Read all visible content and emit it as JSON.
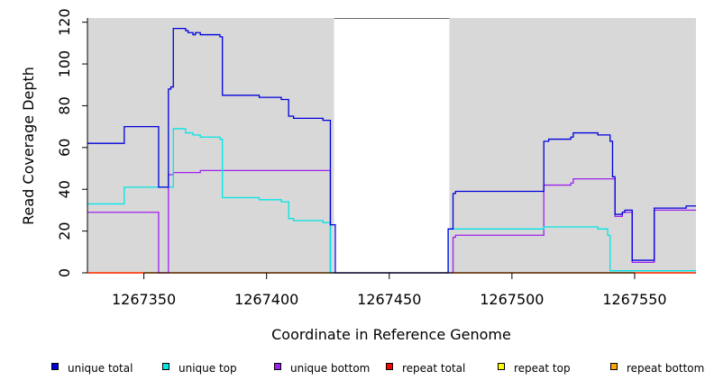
{
  "chart_data": {
    "type": "line",
    "xlabel": "Coordinate in Reference Genome",
    "ylabel": "Read Coverage Depth",
    "xlim": [
      1267327,
      1267575
    ],
    "ylim": [
      0,
      122
    ],
    "x_ticks": [
      1267350,
      1267400,
      1267450,
      1267500,
      1267550
    ],
    "x_tick_labels": [
      "1267350",
      "1267400",
      "1267450",
      "1267500",
      "1267550"
    ],
    "y_ticks": [
      0,
      20,
      40,
      60,
      80,
      100,
      120
    ],
    "y_tick_labels": [
      "0",
      "20",
      "40",
      "60",
      "80",
      "100",
      "120"
    ],
    "grid": false,
    "plot_background": "#d8d8d8",
    "uncovered_regions": [
      [
        1267427.5,
        1267474.5
      ]
    ],
    "legend_position": "bottom",
    "series": [
      {
        "name": "unique total",
        "color": "#0000dd",
        "points": [
          [
            1267327,
            62
          ],
          [
            1267342,
            62
          ],
          [
            1267342,
            70
          ],
          [
            1267356,
            70
          ],
          [
            1267356,
            41
          ],
          [
            1267360,
            41
          ],
          [
            1267360,
            88
          ],
          [
            1267361,
            88
          ],
          [
            1267361,
            89
          ],
          [
            1267362,
            89
          ],
          [
            1267362,
            117
          ],
          [
            1267367,
            117
          ],
          [
            1267367,
            116
          ],
          [
            1267368,
            116
          ],
          [
            1267368,
            115
          ],
          [
            1267370,
            115
          ],
          [
            1267370,
            114
          ],
          [
            1267371,
            114
          ],
          [
            1267371,
            115
          ],
          [
            1267373,
            115
          ],
          [
            1267373,
            114
          ],
          [
            1267381,
            114
          ],
          [
            1267381,
            113
          ],
          [
            1267382,
            113
          ],
          [
            1267382,
            85
          ],
          [
            1267397,
            85
          ],
          [
            1267397,
            84
          ],
          [
            1267406,
            84
          ],
          [
            1267406,
            83
          ],
          [
            1267409,
            83
          ],
          [
            1267409,
            75
          ],
          [
            1267411,
            75
          ],
          [
            1267411,
            74
          ],
          [
            1267423,
            74
          ],
          [
            1267423,
            73
          ],
          [
            1267426,
            73
          ],
          [
            1267426,
            23
          ],
          [
            1267428,
            23
          ],
          [
            1267428,
            0
          ],
          [
            1267474,
            0
          ],
          [
            1267474,
            21
          ],
          [
            1267476,
            21
          ],
          [
            1267476,
            38
          ],
          [
            1267477,
            38
          ],
          [
            1267477,
            39
          ],
          [
            1267513,
            39
          ],
          [
            1267513,
            63
          ],
          [
            1267515,
            63
          ],
          [
            1267515,
            64
          ],
          [
            1267524,
            64
          ],
          [
            1267524,
            65
          ],
          [
            1267525,
            65
          ],
          [
            1267525,
            67
          ],
          [
            1267535,
            67
          ],
          [
            1267535,
            66
          ],
          [
            1267540,
            66
          ],
          [
            1267540,
            63
          ],
          [
            1267541,
            63
          ],
          [
            1267541,
            46
          ],
          [
            1267542,
            46
          ],
          [
            1267542,
            28
          ],
          [
            1267545,
            28
          ],
          [
            1267545,
            29
          ],
          [
            1267546,
            29
          ],
          [
            1267546,
            30
          ],
          [
            1267549,
            30
          ],
          [
            1267549,
            6
          ],
          [
            1267558,
            6
          ],
          [
            1267558,
            31
          ],
          [
            1267571,
            31
          ],
          [
            1267571,
            32
          ],
          [
            1267575,
            32
          ]
        ]
      },
      {
        "name": "unique top",
        "color": "#00e5e5",
        "points": [
          [
            1267327,
            33
          ],
          [
            1267342,
            33
          ],
          [
            1267342,
            41
          ],
          [
            1267356,
            41
          ],
          [
            1267356,
            41
          ],
          [
            1267362,
            41
          ],
          [
            1267362,
            69
          ],
          [
            1267367,
            69
          ],
          [
            1267367,
            67
          ],
          [
            1267370,
            67
          ],
          [
            1267370,
            66
          ],
          [
            1267373,
            66
          ],
          [
            1267373,
            65
          ],
          [
            1267381,
            65
          ],
          [
            1267381,
            64
          ],
          [
            1267382,
            64
          ],
          [
            1267382,
            36
          ],
          [
            1267397,
            36
          ],
          [
            1267397,
            35
          ],
          [
            1267406,
            35
          ],
          [
            1267406,
            34
          ],
          [
            1267409,
            34
          ],
          [
            1267409,
            26
          ],
          [
            1267411,
            26
          ],
          [
            1267411,
            25
          ],
          [
            1267423,
            25
          ],
          [
            1267423,
            24
          ],
          [
            1267426,
            24
          ],
          [
            1267426,
            0
          ],
          [
            1267474,
            0
          ],
          [
            1267474,
            21
          ],
          [
            1267513,
            21
          ],
          [
            1267513,
            22
          ],
          [
            1267535,
            22
          ],
          [
            1267535,
            21
          ],
          [
            1267539,
            21
          ],
          [
            1267539,
            18
          ],
          [
            1267540,
            18
          ],
          [
            1267540,
            1
          ],
          [
            1267575,
            1
          ]
        ]
      },
      {
        "name": "unique bottom",
        "color": "#a020f0",
        "points": [
          [
            1267327,
            29
          ],
          [
            1267356,
            29
          ],
          [
            1267356,
            0
          ],
          [
            1267360,
            0
          ],
          [
            1267360,
            47
          ],
          [
            1267362,
            47
          ],
          [
            1267362,
            48
          ],
          [
            1267373,
            48
          ],
          [
            1267373,
            49
          ],
          [
            1267426,
            49
          ],
          [
            1267426,
            0
          ],
          [
            1267476,
            0
          ],
          [
            1267476,
            17
          ],
          [
            1267477,
            17
          ],
          [
            1267477,
            18
          ],
          [
            1267513,
            18
          ],
          [
            1267513,
            42
          ],
          [
            1267524,
            42
          ],
          [
            1267524,
            43
          ],
          [
            1267525,
            43
          ],
          [
            1267525,
            45
          ],
          [
            1267542,
            45
          ],
          [
            1267542,
            27
          ],
          [
            1267545,
            27
          ],
          [
            1267545,
            29
          ],
          [
            1267549,
            29
          ],
          [
            1267549,
            5
          ],
          [
            1267558,
            5
          ],
          [
            1267558,
            30
          ],
          [
            1267575,
            30
          ]
        ]
      },
      {
        "name": "repeat total",
        "color": "#ff0000",
        "points": [
          [
            1267327,
            0
          ],
          [
            1267575,
            0
          ]
        ]
      },
      {
        "name": "repeat top",
        "color": "#ffff00",
        "points": [
          [
            1267327,
            0
          ],
          [
            1267575,
            0
          ]
        ]
      },
      {
        "name": "repeat bottom",
        "color": "#ffa500",
        "points": [
          [
            1267327,
            0
          ],
          [
            1267575,
            0
          ]
        ]
      }
    ]
  }
}
